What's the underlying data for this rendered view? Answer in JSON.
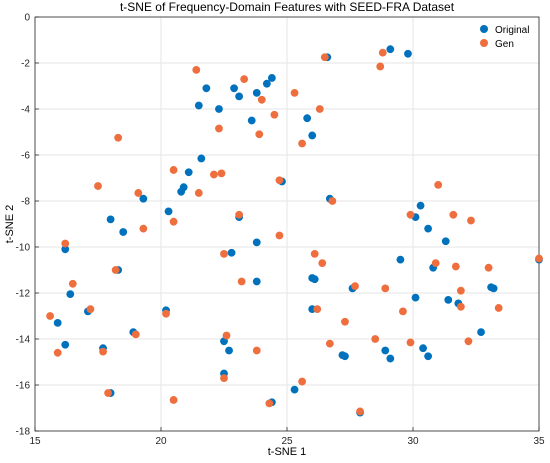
{
  "chart_data": {
    "type": "scatter",
    "title": "t-SNE of Frequency-Domain Features with SEED-FRA Dataset",
    "xlabel": "t-SNE 1",
    "ylabel": "t-SNE 2",
    "xlim": [
      15,
      35
    ],
    "ylim": [
      -18,
      0
    ],
    "xticks": [
      15,
      20,
      25,
      30,
      35
    ],
    "yticks": [
      0,
      -2,
      -4,
      -6,
      -8,
      -10,
      -12,
      -14,
      -16,
      -18
    ],
    "grid": true,
    "legend_position": "top-right",
    "series": [
      {
        "name": "Original",
        "color": "#0072BD",
        "points": [
          [
            26.6,
            -1.75
          ],
          [
            29.1,
            -1.4
          ],
          [
            29.8,
            -1.6
          ],
          [
            22.9,
            -3.1
          ],
          [
            21.8,
            -3.1
          ],
          [
            23.1,
            -3.45
          ],
          [
            24.4,
            -2.65
          ],
          [
            24.2,
            -2.9
          ],
          [
            21.5,
            -3.85
          ],
          [
            22.3,
            -4.0
          ],
          [
            23.8,
            -3.3
          ],
          [
            25.8,
            -4.4
          ],
          [
            23.6,
            -4.5
          ],
          [
            26.0,
            -5.15
          ],
          [
            21.6,
            -6.15
          ],
          [
            21.1,
            -6.75
          ],
          [
            20.8,
            -7.6
          ],
          [
            20.9,
            -7.4
          ],
          [
            24.8,
            -7.15
          ],
          [
            26.7,
            -7.9
          ],
          [
            23.1,
            -8.7
          ],
          [
            20.3,
            -8.45
          ],
          [
            19.3,
            -7.9
          ],
          [
            18.0,
            -8.8
          ],
          [
            18.5,
            -9.35
          ],
          [
            16.2,
            -10.1
          ],
          [
            23.8,
            -9.8
          ],
          [
            22.8,
            -10.25
          ],
          [
            18.3,
            -11.0
          ],
          [
            16.4,
            -12.05
          ],
          [
            15.9,
            -13.3
          ],
          [
            16.2,
            -14.25
          ],
          [
            17.1,
            -12.8
          ],
          [
            20.2,
            -12.75
          ],
          [
            18.9,
            -13.7
          ],
          [
            17.7,
            -14.4
          ],
          [
            18.0,
            -16.35
          ],
          [
            22.5,
            -14.1
          ],
          [
            22.7,
            -14.5
          ],
          [
            22.5,
            -15.5
          ],
          [
            23.8,
            -11.5
          ],
          [
            26.0,
            -11.35
          ],
          [
            26.1,
            -11.4
          ],
          [
            26.0,
            -12.7
          ],
          [
            24.4,
            -16.75
          ],
          [
            25.3,
            -16.2
          ],
          [
            27.6,
            -11.8
          ],
          [
            27.2,
            -14.7
          ],
          [
            27.3,
            -14.75
          ],
          [
            28.9,
            -14.5
          ],
          [
            29.1,
            -14.85
          ],
          [
            27.9,
            -17.2
          ],
          [
            30.3,
            -8.2
          ],
          [
            30.1,
            -8.7
          ],
          [
            30.6,
            -9.2
          ],
          [
            31.3,
            -9.75
          ],
          [
            30.8,
            -10.9
          ],
          [
            29.5,
            -10.55
          ],
          [
            30.1,
            -12.2
          ],
          [
            31.4,
            -12.3
          ],
          [
            31.8,
            -12.45
          ],
          [
            30.4,
            -14.4
          ],
          [
            30.6,
            -14.75
          ],
          [
            32.7,
            -13.7
          ],
          [
            33.1,
            -11.75
          ],
          [
            33.2,
            -11.8
          ],
          [
            35.0,
            -10.55
          ]
        ]
      },
      {
        "name": "Gen",
        "color": "#EE6E3E",
        "points": [
          [
            21.4,
            -2.3
          ],
          [
            23.3,
            -2.7
          ],
          [
            26.5,
            -1.75
          ],
          [
            28.8,
            -1.55
          ],
          [
            28.7,
            -2.15
          ],
          [
            25.3,
            -3.3
          ],
          [
            24.0,
            -3.6
          ],
          [
            26.3,
            -4.0
          ],
          [
            24.5,
            -4.25
          ],
          [
            22.3,
            -4.85
          ],
          [
            23.9,
            -5.1
          ],
          [
            25.6,
            -5.5
          ],
          [
            18.3,
            -5.25
          ],
          [
            20.5,
            -6.65
          ],
          [
            22.1,
            -6.85
          ],
          [
            22.4,
            -6.8
          ],
          [
            21.5,
            -7.65
          ],
          [
            17.5,
            -7.35
          ],
          [
            19.1,
            -7.65
          ],
          [
            24.7,
            -7.1
          ],
          [
            26.8,
            -8.0
          ],
          [
            31.0,
            -7.3
          ],
          [
            29.9,
            -8.6
          ],
          [
            31.6,
            -8.6
          ],
          [
            32.3,
            -8.85
          ],
          [
            20.5,
            -8.9
          ],
          [
            23.1,
            -8.6
          ],
          [
            24.7,
            -9.5
          ],
          [
            19.3,
            -9.2
          ],
          [
            16.2,
            -9.85
          ],
          [
            16.5,
            -11.6
          ],
          [
            18.2,
            -11.0
          ],
          [
            22.5,
            -10.3
          ],
          [
            26.1,
            -10.3
          ],
          [
            26.4,
            -10.7
          ],
          [
            30.9,
            -10.7
          ],
          [
            31.7,
            -10.85
          ],
          [
            33.0,
            -10.9
          ],
          [
            35.0,
            -10.5
          ],
          [
            23.2,
            -11.5
          ],
          [
            27.7,
            -11.7
          ],
          [
            28.9,
            -11.8
          ],
          [
            31.9,
            -11.9
          ],
          [
            31.9,
            -12.6
          ],
          [
            33.4,
            -12.65
          ],
          [
            32.2,
            -14.1
          ],
          [
            29.6,
            -12.8
          ],
          [
            26.2,
            -12.7
          ],
          [
            27.3,
            -13.25
          ],
          [
            26.7,
            -14.2
          ],
          [
            28.5,
            -14.0
          ],
          [
            29.9,
            -14.15
          ],
          [
            22.6,
            -13.85
          ],
          [
            23.8,
            -14.5
          ],
          [
            17.2,
            -12.7
          ],
          [
            15.6,
            -13.0
          ],
          [
            15.9,
            -14.6
          ],
          [
            17.7,
            -14.55
          ],
          [
            19.0,
            -13.8
          ],
          [
            20.2,
            -12.9
          ],
          [
            17.9,
            -16.35
          ],
          [
            20.5,
            -16.65
          ],
          [
            24.3,
            -16.8
          ],
          [
            22.5,
            -15.7
          ],
          [
            25.6,
            -15.85
          ],
          [
            27.9,
            -17.15
          ]
        ]
      }
    ]
  }
}
